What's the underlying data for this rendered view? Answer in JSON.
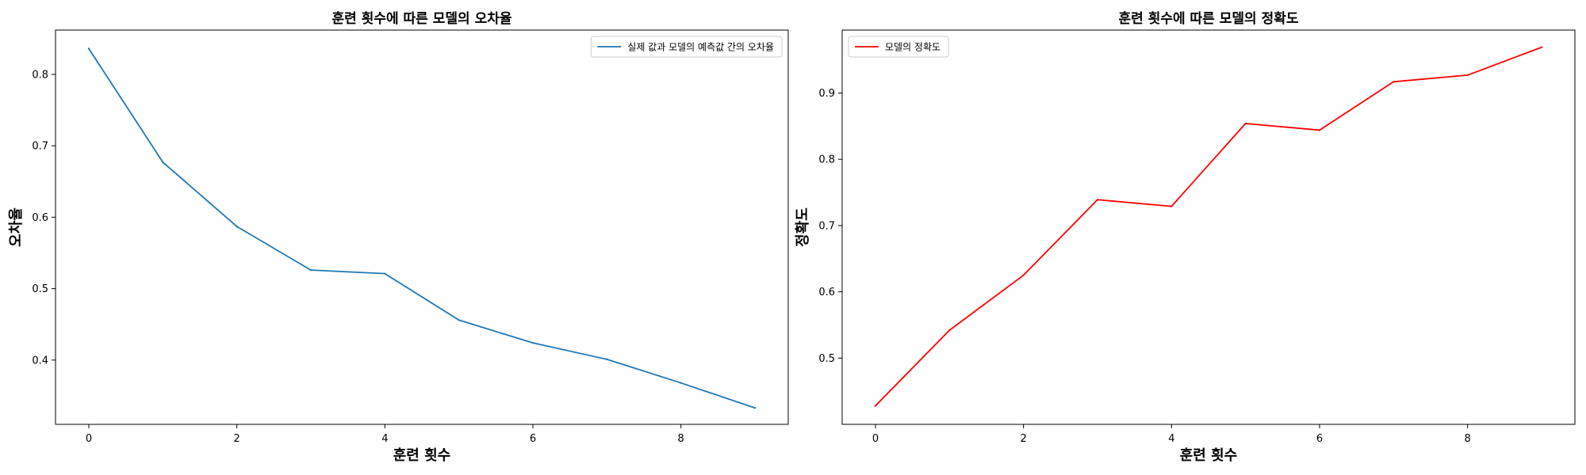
{
  "chart_data": [
    {
      "type": "line",
      "title": "훈련 횟수에 따른 모델의 오차율",
      "xlabel": "훈련 횟수",
      "ylabel": "오차율",
      "xlim": [
        -0.45,
        9.45
      ],
      "ylim": [
        0.31,
        0.862
      ],
      "xticks": [
        0,
        2,
        4,
        6,
        8
      ],
      "yticks": [
        0.4,
        0.5,
        0.6,
        0.7,
        0.8
      ],
      "grid": false,
      "legend": "top-right",
      "x": [
        0,
        1,
        2,
        3,
        4,
        5,
        6,
        7,
        8,
        9
      ],
      "series": [
        {
          "name": "실제 값과 모델의 예측값 간의 오차율",
          "color": "#1f77b4",
          "values": [
            0.836,
            0.677,
            0.587,
            0.526,
            0.521,
            0.456,
            0.424,
            0.401,
            0.368,
            0.333
          ]
        }
      ]
    },
    {
      "type": "line",
      "title": "훈련 횟수에 따른 모델의 정확도",
      "xlabel": "훈련 횟수",
      "ylabel": "정확도",
      "xlim": [
        -0.45,
        9.45
      ],
      "ylim": [
        0.4,
        0.995
      ],
      "xticks": [
        0,
        2,
        4,
        6,
        8
      ],
      "yticks": [
        0.5,
        0.6,
        0.7,
        0.8,
        0.9
      ],
      "grid": false,
      "legend": "top-left",
      "x": [
        0,
        1,
        2,
        3,
        4,
        5,
        6,
        7,
        8,
        9
      ],
      "series": [
        {
          "name": "모델의 정확도",
          "color": "#ff0000",
          "values": [
            0.428,
            0.542,
            0.625,
            0.739,
            0.729,
            0.854,
            0.844,
            0.917,
            0.927,
            0.969
          ]
        }
      ]
    }
  ]
}
